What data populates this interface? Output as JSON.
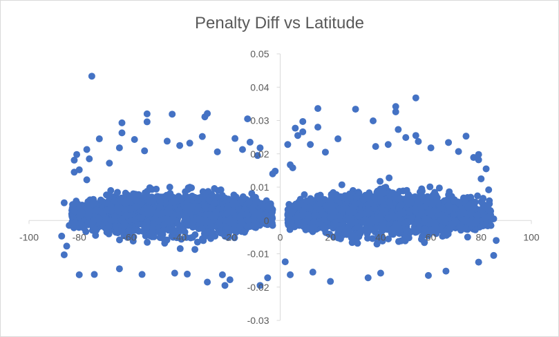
{
  "chart_data": {
    "type": "scatter",
    "title": "Penalty Diff vs Latitude",
    "xlabel": "",
    "ylabel": "",
    "xlim": [
      -100,
      100
    ],
    "ylim": [
      -0.03,
      0.05
    ],
    "x_ticks": [
      -100,
      -80,
      -60,
      -40,
      -20,
      0,
      20,
      40,
      60,
      80,
      100
    ],
    "y_ticks": [
      -0.03,
      -0.02,
      -0.01,
      0,
      0.01,
      0.02,
      0.03,
      0.04,
      0.05
    ],
    "x_tick_labels": [
      "-100",
      "-80",
      "-60",
      "-40",
      "-20",
      "0",
      "20",
      "40",
      "60",
      "80",
      "100"
    ],
    "y_tick_labels": [
      "-0.03",
      "-0.02",
      "-0.01",
      "0",
      "0.01",
      "0.02",
      "0.03",
      "0.04",
      "0.05"
    ],
    "grid": false,
    "legend": "none",
    "marker_color": "#4472c4",
    "series": [
      {
        "values": [
          [
            -75,
            0.0433
          ],
          [
            -53,
            0.032
          ],
          [
            -43,
            0.0319
          ],
          [
            -29,
            0.0321
          ],
          [
            -53,
            0.0296
          ],
          [
            -63,
            0.0293
          ],
          [
            -30,
            0.0311
          ],
          [
            -13,
            0.0305
          ],
          [
            -63,
            0.0263
          ],
          [
            -31,
            0.0252
          ],
          [
            -72,
            0.0245
          ],
          [
            -58,
            0.0243
          ],
          [
            -18,
            0.0246
          ],
          [
            -12,
            0.0235
          ],
          [
            -77,
            0.0213
          ],
          [
            -64,
            0.0218
          ],
          [
            -45,
            0.0238
          ],
          [
            -36,
            0.0232
          ],
          [
            -8,
            0.0218
          ],
          [
            -81,
            0.0198
          ],
          [
            -82,
            0.0181
          ],
          [
            -76,
            0.0185
          ],
          [
            -68,
            0.0172
          ],
          [
            -54,
            0.0209
          ],
          [
            -40,
            0.0225
          ],
          [
            -25,
            0.0206
          ],
          [
            -15,
            0.0213
          ],
          [
            -9,
            0.0195
          ],
          [
            -82,
            0.0145
          ],
          [
            -80,
            0.0152
          ],
          [
            -77,
            0.0122
          ],
          [
            -86,
            0.0053
          ],
          [
            -84,
            -0.0015
          ],
          [
            -87,
            -0.0047
          ],
          [
            -85,
            -0.0077
          ],
          [
            -86,
            -0.0103
          ],
          [
            -80,
            -0.0163
          ],
          [
            -74,
            -0.0162
          ],
          [
            -64,
            -0.0145
          ],
          [
            -55,
            -0.0162
          ],
          [
            -42,
            -0.0158
          ],
          [
            -37,
            -0.0161
          ],
          [
            -29,
            -0.0185
          ],
          [
            -23,
            -0.0163
          ],
          [
            -22,
            -0.0195
          ],
          [
            -20,
            -0.0178
          ],
          [
            -8,
            -0.0195
          ],
          [
            -5,
            -0.0172
          ],
          [
            -3,
            0.014
          ],
          [
            -2,
            0.0148
          ],
          [
            3,
            0.0228
          ],
          [
            4,
            0.0167
          ],
          [
            5,
            0.0158
          ],
          [
            4,
            -0.0163
          ],
          [
            2,
            -0.0124
          ],
          [
            6,
            0.0277
          ],
          [
            9,
            0.0297
          ],
          [
            9,
            0.0266
          ],
          [
            7,
            0.0255
          ],
          [
            15,
            0.0336
          ],
          [
            15,
            0.028
          ],
          [
            30,
            0.0334
          ],
          [
            37,
            0.0299
          ],
          [
            46,
            0.0342
          ],
          [
            46,
            0.0326
          ],
          [
            54,
            0.0368
          ],
          [
            54,
            0.0255
          ],
          [
            55,
            0.0237
          ],
          [
            47,
            0.0273
          ],
          [
            50,
            0.0249
          ],
          [
            67,
            0.0234
          ],
          [
            74,
            0.0253
          ],
          [
            79,
            0.0198
          ],
          [
            79,
            0.0182
          ],
          [
            82,
            0.0155
          ],
          [
            80,
            0.0125
          ],
          [
            83,
            0.0092
          ],
          [
            85,
            0.0005
          ],
          [
            86,
            -0.006
          ],
          [
            85,
            -0.0105
          ],
          [
            79,
            -0.0125
          ],
          [
            66,
            -0.0152
          ],
          [
            59,
            -0.0165
          ],
          [
            40,
            -0.0158
          ],
          [
            35,
            -0.0172
          ],
          [
            20,
            -0.0183
          ],
          [
            13,
            -0.0155
          ],
          [
            23,
            0.0245
          ],
          [
            38,
            0.0222
          ],
          [
            43,
            0.0228
          ],
          [
            60,
            0.0218
          ],
          [
            71,
            0.0207
          ],
          [
            77,
            0.0189
          ],
          [
            12,
            0.0228
          ],
          [
            18,
            0.0205
          ]
        ]
      }
    ]
  }
}
